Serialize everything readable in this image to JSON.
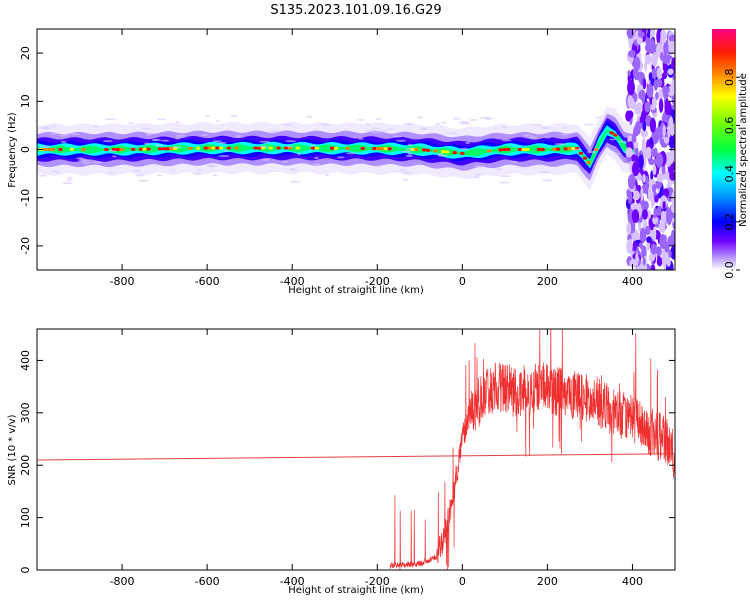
{
  "figure": {
    "title": "S135.2023.101.09.16.G29"
  },
  "chart_data": [
    {
      "type": "heatmap",
      "xlabel": "Height of straight line (km)",
      "ylabel": "Frequency (Hz)",
      "xlim": [
        -1000,
        500
      ],
      "ylim": [
        -25,
        25
      ],
      "xticks": [
        -800,
        -600,
        -400,
        -200,
        0,
        200,
        400
      ],
      "yticks": [
        -20,
        -10,
        0,
        10,
        20
      ],
      "colorbar": {
        "label": "Normalized spectral amplitude",
        "range": [
          0,
          1
        ],
        "ticks": [
          0.0,
          0.2,
          0.4,
          0.6,
          0.8
        ],
        "colormap": [
          "#ffffff",
          "#6e00ff",
          "#0000ff",
          "#00e0ff",
          "#00ff00",
          "#ffff00",
          "#ff8000",
          "#ff0000",
          "#ff0080"
        ]
      },
      "ridge": {
        "x": [
          -1000,
          -800,
          -600,
          -400,
          -200,
          -100,
          0,
          100,
          200,
          270,
          290,
          300,
          320,
          340,
          360,
          380,
          400
        ],
        "y": [
          0.0,
          0.0,
          0.3,
          0.3,
          0.2,
          0.0,
          -0.8,
          0.0,
          0.0,
          0.2,
          -2.0,
          -3.0,
          1.0,
          4.0,
          3.0,
          0.5,
          0.0
        ]
      },
      "noise_onset_km": 400,
      "grid": false
    },
    {
      "type": "line",
      "xlabel": "Height of straight line (km)",
      "ylabel": "SNR (10 * v/v)",
      "xlim": [
        -1000,
        500
      ],
      "ylim": [
        0,
        460
      ],
      "xticks": [
        -800,
        -600,
        -400,
        -200,
        0,
        200,
        400
      ],
      "yticks": [
        0,
        100,
        200,
        300,
        400
      ],
      "series": [
        {
          "color": "#f03030",
          "x": [
            -170,
            -100,
            -60,
            -40,
            -20,
            0,
            20,
            50,
            80,
            120,
            160,
            200,
            240,
            280,
            320,
            360,
            400,
            440,
            480,
            500
          ],
          "y": [
            8,
            12,
            25,
            70,
            150,
            250,
            305,
            330,
            350,
            340,
            345,
            350,
            335,
            330,
            320,
            300,
            290,
            265,
            245,
            215
          ]
        },
        {
          "color": "#e04040",
          "x": [
            -1000,
            500
          ],
          "y": [
            210,
            222
          ]
        }
      ],
      "grid": false
    }
  ]
}
